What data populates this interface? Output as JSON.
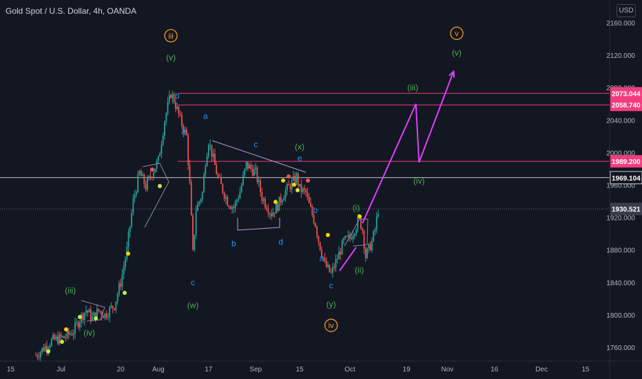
{
  "header": {
    "title": "Gold Spot / U.S. Dollar, 4h, OANDA",
    "currency_button": "USD"
  },
  "colors": {
    "background": "#131722",
    "up_candle": "#26a69a",
    "down_candle": "#ef5350",
    "magenta": "#e040fb",
    "level_line": "#f23c7d",
    "current_line": "#c9cbd2",
    "green_label": "#4caf50",
    "blue_label": "#2196f3",
    "orange_label": "#f59a23"
  },
  "chart_data": {
    "type": "candlestick",
    "symbol": "Gold Spot / U.S. Dollar",
    "interval": "4h",
    "source": "OANDA",
    "ylim": [
      1745,
      2172
    ],
    "y_ticks": [
      {
        "value": 1760,
        "label": "1760.000"
      },
      {
        "value": 1800,
        "label": "1800.000"
      },
      {
        "value": 1840,
        "label": "1840.000"
      },
      {
        "value": 1880,
        "label": "1880.000"
      },
      {
        "value": 1920,
        "label": "1920.000"
      },
      {
        "value": 1960,
        "label": "1960.000"
      },
      {
        "value": 2000,
        "label": "2000.000"
      },
      {
        "value": 2040,
        "label": "2040.000"
      },
      {
        "value": 2080,
        "label": "2080.000"
      },
      {
        "value": 2120,
        "label": "2120.000"
      },
      {
        "value": 2160,
        "label": "2160.000"
      }
    ],
    "x_ticks": [
      {
        "label": "15",
        "day": -16
      },
      {
        "label": "Jul",
        "day": 0
      },
      {
        "label": "20",
        "day": 19
      },
      {
        "label": "Aug",
        "day": 31
      },
      {
        "label": "17",
        "day": 47
      },
      {
        "label": "Sep",
        "day": 62
      },
      {
        "label": "15",
        "day": 76
      },
      {
        "label": "Oct",
        "day": 92
      },
      {
        "label": "19",
        "day": 110
      },
      {
        "label": "Nov",
        "day": 123
      },
      {
        "label": "16",
        "day": 138
      },
      {
        "label": "Dec",
        "day": 153
      },
      {
        "label": "15",
        "day": 167
      }
    ],
    "price_path": [
      {
        "day": -8,
        "price": 1750
      },
      {
        "day": -3,
        "price": 1768
      },
      {
        "day": 1,
        "price": 1772
      },
      {
        "day": 4,
        "price": 1780
      },
      {
        "day": 6,
        "price": 1795
      },
      {
        "day": 8,
        "price": 1806
      },
      {
        "day": 10,
        "price": 1796
      },
      {
        "day": 12,
        "price": 1805
      },
      {
        "day": 14,
        "price": 1800
      },
      {
        "day": 17,
        "price": 1812
      },
      {
        "day": 19,
        "price": 1840
      },
      {
        "day": 21,
        "price": 1880
      },
      {
        "day": 23,
        "price": 1940
      },
      {
        "day": 25,
        "price": 1975
      },
      {
        "day": 27,
        "price": 1958
      },
      {
        "day": 29,
        "price": 1975
      },
      {
        "day": 31,
        "price": 1990
      },
      {
        "day": 33,
        "price": 2040
      },
      {
        "day": 35,
        "price": 2073
      },
      {
        "day": 36,
        "price": 2065
      },
      {
        "day": 38,
        "price": 2040
      },
      {
        "day": 40,
        "price": 2020
      },
      {
        "day": 41,
        "price": 1960
      },
      {
        "day": 42,
        "price": 1875
      },
      {
        "day": 43,
        "price": 1930
      },
      {
        "day": 45,
        "price": 1950
      },
      {
        "day": 46,
        "price": 1990
      },
      {
        "day": 47,
        "price": 2015
      },
      {
        "day": 50,
        "price": 1968
      },
      {
        "day": 53,
        "price": 1940
      },
      {
        "day": 55,
        "price": 1932
      },
      {
        "day": 57,
        "price": 1952
      },
      {
        "day": 59,
        "price": 1985
      },
      {
        "day": 62,
        "price": 1975
      },
      {
        "day": 64,
        "price": 1945
      },
      {
        "day": 67,
        "price": 1925
      },
      {
        "day": 69,
        "price": 1935
      },
      {
        "day": 71,
        "price": 1950
      },
      {
        "day": 73,
        "price": 1960
      },
      {
        "day": 75,
        "price": 1970
      },
      {
        "day": 76,
        "price": 1955
      },
      {
        "day": 78,
        "price": 1950
      },
      {
        "day": 79,
        "price": 1935
      },
      {
        "day": 81,
        "price": 1912
      },
      {
        "day": 82,
        "price": 1892
      },
      {
        "day": 84,
        "price": 1862
      },
      {
        "day": 86,
        "price": 1850
      },
      {
        "day": 88,
        "price": 1870
      },
      {
        "day": 90,
        "price": 1890
      },
      {
        "day": 92,
        "price": 1895
      },
      {
        "day": 95,
        "price": 1918
      },
      {
        "day": 96,
        "price": 1905
      },
      {
        "day": 97,
        "price": 1872
      },
      {
        "day": 99,
        "price": 1890
      },
      {
        "day": 100,
        "price": 1905
      },
      {
        "day": 101,
        "price": 1930
      }
    ],
    "price_lines": [
      {
        "label": "2073.044",
        "value": 2073.044,
        "style": "level"
      },
      {
        "label": "2058.740",
        "value": 2058.74,
        "style": "level"
      },
      {
        "label": "1989.200",
        "value": 1989.2,
        "style": "level"
      },
      {
        "label": "1969.104",
        "value": 1969.104,
        "style": "current"
      },
      {
        "label": "1930.521",
        "value": 1930.521,
        "style": "last"
      }
    ],
    "projection_path": [
      {
        "day": 96,
        "price": 1913
      },
      {
        "day": 113,
        "price": 2060
      },
      {
        "day": 114,
        "price": 1988
      },
      {
        "day": 125,
        "price": 2100
      }
    ],
    "wave_labels": [
      {
        "text": "iii",
        "day": 35,
        "price": 2144,
        "color": "orange",
        "circled": true
      },
      {
        "text": "(v)",
        "day": 35,
        "price": 2117,
        "color": "green"
      },
      {
        "text": "b",
        "day": 37,
        "price": 2070,
        "color": "blue"
      },
      {
        "text": "a",
        "day": 39,
        "price": 2026,
        "color": "blue"
      },
      {
        "text": "a",
        "day": 46,
        "price": 2045,
        "color": "blue"
      },
      {
        "text": "c",
        "day": 42,
        "price": 1840,
        "color": "blue"
      },
      {
        "text": "(w)",
        "day": 42,
        "price": 1812,
        "color": "green"
      },
      {
        "text": "c",
        "day": 62,
        "price": 2010,
        "color": "blue"
      },
      {
        "text": "b",
        "day": 55,
        "price": 1888,
        "color": "blue"
      },
      {
        "text": "d",
        "day": 70,
        "price": 1890,
        "color": "blue"
      },
      {
        "text": "(x)",
        "day": 76,
        "price": 2007,
        "color": "green"
      },
      {
        "text": "e",
        "day": 76,
        "price": 1993,
        "color": "blue"
      },
      {
        "text": "b",
        "day": 81,
        "price": 1929,
        "color": "blue"
      },
      {
        "text": "a",
        "day": 83,
        "price": 1870,
        "color": "blue"
      },
      {
        "text": "c",
        "day": 86,
        "price": 1836,
        "color": "blue"
      },
      {
        "text": "(y)",
        "day": 86,
        "price": 1813,
        "color": "green"
      },
      {
        "text": "iv",
        "day": 86,
        "price": 1787,
        "color": "orange",
        "circled": true
      },
      {
        "text": "(i)",
        "day": 94,
        "price": 1932,
        "color": "green"
      },
      {
        "text": "(ii)",
        "day": 95,
        "price": 1855,
        "color": "green"
      },
      {
        "text": "(iii)",
        "day": 112,
        "price": 2080,
        "color": "green"
      },
      {
        "text": "(iv)",
        "day": 114,
        "price": 1965,
        "color": "green"
      },
      {
        "text": "v",
        "day": 126,
        "price": 2147,
        "color": "orange",
        "circled": true
      },
      {
        "text": "(v)",
        "day": 126,
        "price": 2123,
        "color": "green"
      },
      {
        "text": "(iii)",
        "day": 3,
        "price": 1830,
        "color": "green"
      },
      {
        "text": "(iv)",
        "day": 9,
        "price": 1778,
        "color": "green"
      }
    ]
  }
}
